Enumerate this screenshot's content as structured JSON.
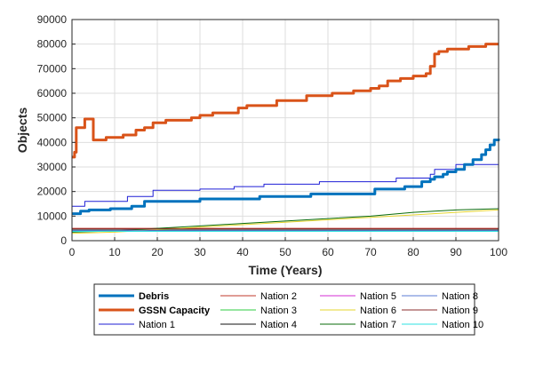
{
  "chart_data": {
    "type": "line",
    "xlabel": "Time (Years)",
    "ylabel": "Objects",
    "xlim": [
      0,
      100
    ],
    "ylim": [
      0,
      90000
    ],
    "xticks": [
      0,
      10,
      20,
      30,
      40,
      50,
      60,
      70,
      80,
      90,
      100
    ],
    "yticks": [
      0,
      10000,
      20000,
      30000,
      40000,
      50000,
      60000,
      70000,
      80000,
      90000
    ],
    "xtick_labels": [
      "0",
      "10",
      "20",
      "30",
      "40",
      "50",
      "60",
      "70",
      "80",
      "90",
      "100"
    ],
    "ytick_labels": [
      "0",
      "10000",
      "20000",
      "30000",
      "40000",
      "50000",
      "60000",
      "70000",
      "80000",
      "90000"
    ],
    "grid": true,
    "legend_placement": "below chart",
    "series": [
      {
        "name": "Debris",
        "color": "#0072BD",
        "bold": true,
        "step": true,
        "points": [
          [
            0,
            11000
          ],
          [
            2,
            12000
          ],
          [
            4,
            12500
          ],
          [
            9,
            13000
          ],
          [
            14,
            14000
          ],
          [
            17,
            16000
          ],
          [
            30,
            17000
          ],
          [
            44,
            18000
          ],
          [
            56,
            19000
          ],
          [
            71,
            21000
          ],
          [
            78,
            22000
          ],
          [
            82,
            24000
          ],
          [
            84,
            25000
          ],
          [
            85,
            26000
          ],
          [
            87,
            27000
          ],
          [
            88,
            28000
          ],
          [
            90,
            29000
          ],
          [
            92,
            31000
          ],
          [
            94,
            33000
          ],
          [
            96,
            35000
          ],
          [
            97,
            37000
          ],
          [
            98,
            39000
          ],
          [
            99,
            41000
          ],
          [
            100,
            41500
          ]
        ]
      },
      {
        "name": "GSSN Capacity",
        "color": "#D95319",
        "bold": true,
        "step": true,
        "points": [
          [
            0,
            34000
          ],
          [
            0.6,
            36000
          ],
          [
            1,
            46000
          ],
          [
            3,
            49500
          ],
          [
            5,
            41000
          ],
          [
            8,
            42000
          ],
          [
            12,
            43000
          ],
          [
            15,
            45000
          ],
          [
            17,
            46000
          ],
          [
            19,
            48000
          ],
          [
            22,
            49000
          ],
          [
            28,
            50000
          ],
          [
            30,
            51000
          ],
          [
            33,
            52000
          ],
          [
            39,
            54000
          ],
          [
            41,
            55000
          ],
          [
            48,
            57000
          ],
          [
            55,
            59000
          ],
          [
            61,
            60000
          ],
          [
            66,
            61000
          ],
          [
            70,
            62000
          ],
          [
            72,
            63000
          ],
          [
            74,
            65000
          ],
          [
            77,
            66000
          ],
          [
            80,
            67000
          ],
          [
            83,
            68000
          ],
          [
            84,
            71000
          ],
          [
            85,
            76000
          ],
          [
            86,
            77000
          ],
          [
            88,
            78000
          ],
          [
            93,
            79000
          ],
          [
            97,
            80000
          ],
          [
            100,
            80000
          ]
        ]
      },
      {
        "name": "Nation 1",
        "color": "#1f1fd6",
        "bold": false,
        "step": true,
        "points": [
          [
            0,
            14000
          ],
          [
            3,
            16000
          ],
          [
            13,
            18000
          ],
          [
            19,
            20500
          ],
          [
            30,
            21000
          ],
          [
            38,
            22000
          ],
          [
            45,
            23000
          ],
          [
            58,
            24000
          ],
          [
            76,
            25500
          ],
          [
            84,
            27000
          ],
          [
            85,
            29000
          ],
          [
            90,
            31000
          ],
          [
            100,
            31000
          ]
        ]
      },
      {
        "name": "Nation 2",
        "color": "#c0392b",
        "bold": false,
        "step": false,
        "points": [
          [
            0,
            5000
          ],
          [
            100,
            5000
          ]
        ]
      },
      {
        "name": "Nation 3",
        "color": "#2ecc40",
        "bold": false,
        "step": false,
        "points": [
          [
            0,
            4500
          ],
          [
            100,
            4500
          ]
        ]
      },
      {
        "name": "Nation 4",
        "color": "#111111",
        "bold": false,
        "step": false,
        "points": [
          [
            0,
            4000
          ],
          [
            100,
            4000
          ]
        ]
      },
      {
        "name": "Nation 5",
        "color": "#d42cd4",
        "bold": false,
        "step": false,
        "points": [
          [
            0,
            4700
          ],
          [
            100,
            4700
          ]
        ]
      },
      {
        "name": "Nation 6",
        "color": "#e6d52e",
        "bold": false,
        "step": false,
        "points": [
          [
            0,
            3000
          ],
          [
            10,
            3500
          ],
          [
            20,
            4500
          ],
          [
            30,
            5500
          ],
          [
            40,
            6500
          ],
          [
            50,
            7500
          ],
          [
            60,
            8500
          ],
          [
            70,
            9500
          ],
          [
            80,
            10500
          ],
          [
            90,
            11500
          ],
          [
            100,
            12500
          ]
        ]
      },
      {
        "name": "Nation 7",
        "color": "#0a6b0a",
        "bold": false,
        "step": false,
        "points": [
          [
            0,
            3500
          ],
          [
            10,
            4000
          ],
          [
            20,
            5000
          ],
          [
            30,
            6000
          ],
          [
            40,
            7000
          ],
          [
            50,
            8000
          ],
          [
            60,
            9000
          ],
          [
            70,
            10000
          ],
          [
            80,
            11500
          ],
          [
            90,
            12500
          ],
          [
            100,
            13000
          ]
        ]
      },
      {
        "name": "Nation 8",
        "color": "#5b7bd6",
        "bold": false,
        "step": false,
        "points": [
          [
            0,
            4200
          ],
          [
            100,
            4200
          ]
        ]
      },
      {
        "name": "Nation 9",
        "color": "#8b2c2c",
        "bold": false,
        "step": false,
        "points": [
          [
            0,
            4800
          ],
          [
            100,
            4800
          ]
        ]
      },
      {
        "name": "Nation 10",
        "color": "#2ee0e0",
        "bold": false,
        "step": false,
        "points": [
          [
            0,
            3800
          ],
          [
            100,
            3800
          ]
        ]
      }
    ]
  }
}
